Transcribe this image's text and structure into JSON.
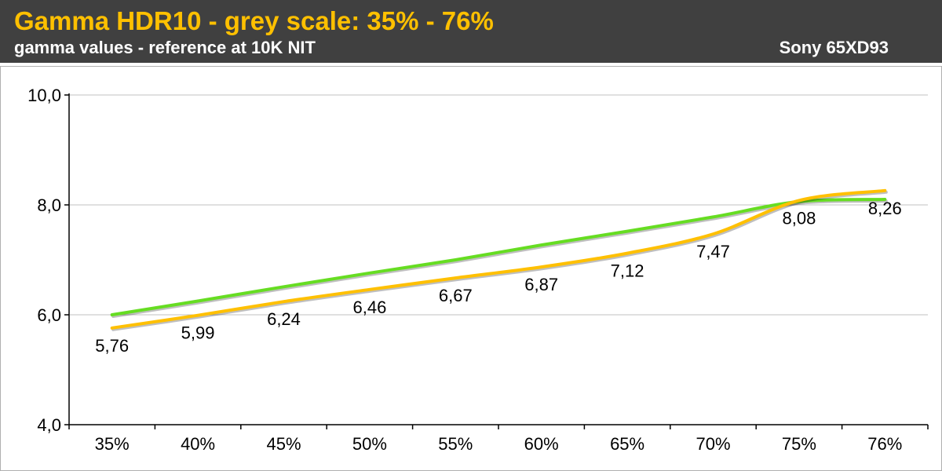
{
  "header": {
    "title": "Gamma HDR10 - grey scale: 35% - 76%",
    "subtitle": "gamma values - reference at 10K NIT",
    "device": "Sony 65XD93"
  },
  "colors": {
    "header_bg": "#404040",
    "title": "#ffc000",
    "measured_line": "#ffc000",
    "reference_line": "#66dd22"
  },
  "chart_data": {
    "type": "line",
    "categories": [
      "35%",
      "40%",
      "45%",
      "50%",
      "55%",
      "60%",
      "65%",
      "70%",
      "75%",
      "76%"
    ],
    "ylim": [
      4,
      10
    ],
    "yticks": [
      4,
      6,
      8,
      10
    ],
    "ytick_labels": [
      "4,0",
      "6,0",
      "8,0",
      "10,0"
    ],
    "grid": true,
    "series": [
      {
        "values": [
          6.0,
          6.25,
          6.51,
          6.76,
          7.0,
          7.27,
          7.52,
          7.78,
          8.06,
          8.1
        ],
        "color": "#66dd22",
        "labels": null
      },
      {
        "values": [
          5.76,
          5.99,
          6.24,
          6.46,
          6.67,
          6.87,
          7.12,
          7.47,
          8.08,
          8.26
        ],
        "color": "#ffc000",
        "labels": [
          "5,76",
          "5,99",
          "6,24",
          "6,46",
          "6,67",
          "6,87",
          "7,12",
          "7,47",
          "8,08",
          "8,26"
        ]
      }
    ]
  }
}
